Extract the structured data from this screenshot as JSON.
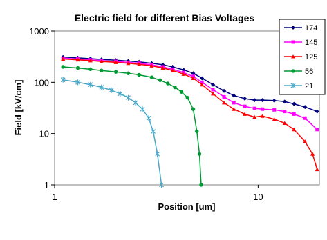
{
  "chart_data": {
    "type": "line",
    "title": "Electric field for different Bias Voltages",
    "xlabel": "Position [um]",
    "ylabel": "Field [kV/cm]",
    "x_scale": "log",
    "y_scale": "log",
    "xlim": [
      1,
      20
    ],
    "ylim": [
      1,
      1000
    ],
    "x_ticks": [
      "1",
      "10"
    ],
    "y_ticks": [
      "1",
      "10",
      "100",
      "1000"
    ],
    "legend_position": "top-right",
    "series": [
      {
        "name": "174",
        "color": "#000080",
        "marker": "diamond",
        "x": [
          1.1,
          1.3,
          1.5,
          1.7,
          2.0,
          2.3,
          2.6,
          3.0,
          3.4,
          3.8,
          4.3,
          4.8,
          5.3,
          6.0,
          6.8,
          7.6,
          8.6,
          9.6,
          10.5,
          12.0,
          13.5,
          15.0,
          17.0,
          19.5
        ],
        "y": [
          310,
          300,
          290,
          280,
          270,
          260,
          250,
          235,
          220,
          200,
          175,
          150,
          120,
          90,
          68,
          55,
          48,
          45,
          45,
          44,
          42,
          38,
          33,
          27
        ]
      },
      {
        "name": "145",
        "color": "#ff00ff",
        "marker": "square",
        "x": [
          1.1,
          1.3,
          1.5,
          1.7,
          2.0,
          2.3,
          2.6,
          3.0,
          3.4,
          3.8,
          4.3,
          4.8,
          5.3,
          6.0,
          6.8,
          7.6,
          8.6,
          9.6,
          10.5,
          12.0,
          13.5,
          15.0,
          17.0,
          19.5
        ],
        "y": [
          295,
          285,
          275,
          265,
          255,
          245,
          235,
          220,
          200,
          180,
          155,
          130,
          100,
          72,
          52,
          40,
          34,
          31,
          30,
          29,
          27,
          24,
          20,
          12
        ]
      },
      {
        "name": "125",
        "color": "#ff0000",
        "marker": "triangle",
        "x": [
          1.1,
          1.3,
          1.5,
          1.7,
          2.0,
          2.3,
          2.6,
          3.0,
          3.4,
          3.8,
          4.3,
          4.8,
          5.3,
          6.0,
          6.8,
          7.6,
          8.6,
          9.6,
          10.5,
          12.0,
          13.5,
          15.0,
          17.0,
          18.5,
          19.5
        ],
        "y": [
          285,
          275,
          265,
          255,
          245,
          235,
          225,
          210,
          190,
          170,
          145,
          120,
          90,
          60,
          40,
          30,
          24,
          21,
          22,
          19,
          16,
          12,
          7,
          4,
          2
        ]
      },
      {
        "name": "56",
        "color": "#009933",
        "marker": "circle",
        "x": [
          1.1,
          1.3,
          1.5,
          1.7,
          2.0,
          2.3,
          2.6,
          3.0,
          3.3,
          3.6,
          3.9,
          4.2,
          4.5,
          4.8,
          5.0,
          5.15,
          5.25
        ],
        "y": [
          200,
          190,
          180,
          170,
          160,
          150,
          140,
          125,
          110,
          95,
          80,
          65,
          50,
          30,
          11,
          4,
          1
        ]
      },
      {
        "name": "21",
        "color": "#4aa8c8",
        "marker": "asterisk",
        "x": [
          1.1,
          1.3,
          1.5,
          1.7,
          1.9,
          2.1,
          2.3,
          2.5,
          2.7,
          2.9,
          3.05,
          3.2,
          3.35
        ],
        "y": [
          112,
          100,
          90,
          80,
          70,
          60,
          50,
          40,
          30,
          20,
          11,
          4,
          1
        ]
      }
    ]
  }
}
